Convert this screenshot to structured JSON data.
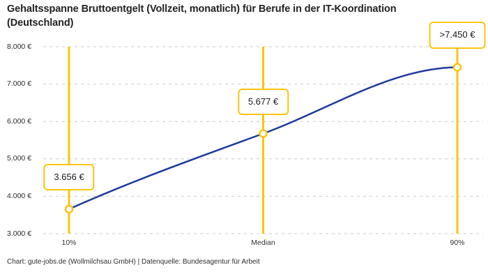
{
  "footer": {
    "credit": "Chart: gute-jobs.de (Wollmilchsau GmbH) | Datenquelle: Bundesagentur für Arbeit"
  },
  "chart_data": {
    "type": "line",
    "title": "Gehaltsspanne Bruttoentgelt (Vollzeit, monatlich) für Berufe in der IT-Koordination (Deutschland)",
    "categories": [
      "10%",
      "Median",
      "90%"
    ],
    "values": [
      3656,
      5677,
      7450
    ],
    "point_labels": [
      "3.656 €",
      "5.677 €",
      ">7.450 €"
    ],
    "ylim": [
      3000,
      8000
    ],
    "ytick_step": 1000,
    "ytick_labels": [
      "3.000 €",
      "4.000 €",
      "5.000 €",
      "6.000 €",
      "7.000 €",
      "8.000 €"
    ],
    "grid": "horizontal-dashed",
    "legend": "none",
    "curve_shape": "rises from 10% point, near-linear through median, plateaus flat at 90% point",
    "colors": {
      "line": "#1e3a9e",
      "accent": "#fcc40e",
      "grid": "#cbcbcb",
      "text": "#222222",
      "marker_fill": "#ffffff"
    }
  }
}
